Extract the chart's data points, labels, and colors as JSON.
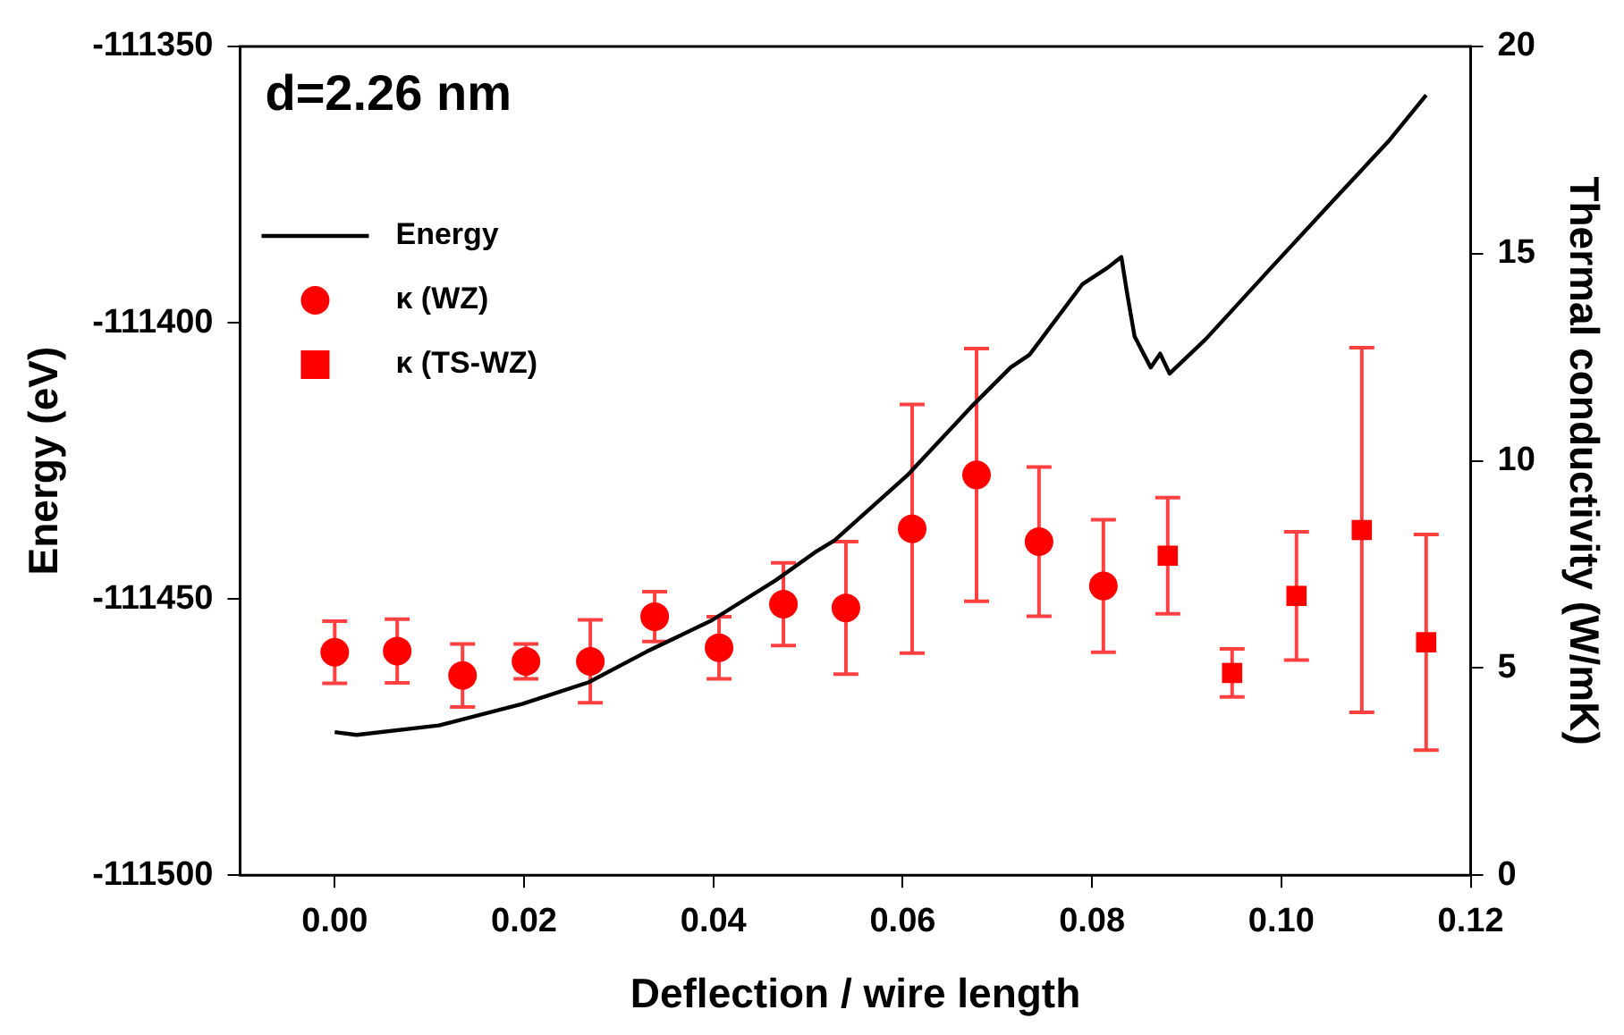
{
  "chart_data": {
    "type": "scatter",
    "xlabel": "Deflection / wire length",
    "ylabel": "Energy (eV)",
    "y2label": "Thermal conductivity (W/mK)",
    "annotations": [
      "d=2.26 nm"
    ],
    "xlim": [
      -0.01,
      0.12
    ],
    "xticks": [
      {
        "value": 0,
        "label": "0.00"
      },
      0.02,
      0.04,
      0.06,
      0.08,
      {
        "value": 0.1,
        "label": "0.10"
      },
      0.12
    ],
    "ylim": [
      -111500,
      -111350
    ],
    "yticks": [
      -111500,
      -111450,
      -111400,
      -111350
    ],
    "y2lim": [
      0,
      20
    ],
    "y2ticks": [
      0,
      5,
      10,
      15,
      20
    ],
    "grid": false,
    "legend": "top left",
    "series": [
      {
        "name": "Energy",
        "type": "line",
        "color": "#000000",
        "marker": "none",
        "line_style": "solid",
        "axis": "y",
        "x": [
          0,
          0.0023,
          0.011,
          0.0198,
          0.0268,
          0.033,
          0.0398,
          0.0466,
          0.0507,
          0.0528,
          0.0605,
          0.0672,
          0.0714,
          0.0734,
          0.079,
          0.0816,
          0.0831,
          0.0837,
          0.0845,
          0.0862,
          0.0872,
          0.0882,
          0.092,
          0.0989,
          0.1058,
          0.1113,
          0.1153
        ],
        "values": [
          -111474.1,
          -111474.6,
          -111472.9,
          -111469,
          -111465.1,
          -111459.5,
          -111453.9,
          -111446.6,
          -111441.6,
          -111439.4,
          -111427.6,
          -111415.3,
          -111408.1,
          -111405.8,
          -111393,
          -111390.1,
          -111388.1,
          -111394.6,
          -111402.5,
          -111408.1,
          -111405.6,
          -111409.2,
          -111403,
          -111390.1,
          -111377.3,
          -111367.2,
          -111358.8
        ]
      },
      {
        "name": "κ (WZ)",
        "color": "#ff0000",
        "marker": "circle",
        "axis": "y2",
        "x": [
          0,
          0.0066,
          0.0135,
          0.0202,
          0.027,
          0.0338,
          0.0406,
          0.0474,
          0.054,
          0.061,
          0.0678,
          0.0744,
          0.0812
        ],
        "values": [
          5.38,
          5.41,
          4.82,
          5.16,
          5.16,
          6.24,
          5.49,
          6.54,
          6.45,
          8.36,
          9.66,
          8.05,
          6.98
        ],
        "errors": [
          0.75,
          0.77,
          0.76,
          0.42,
          1.0,
          0.6,
          0.75,
          1.0,
          1.6,
          3.0,
          3.05,
          1.8,
          1.6
        ]
      },
      {
        "name": "κ (TS-WZ)",
        "color": "#ff0000",
        "marker": "square",
        "axis": "y2",
        "x": [
          0.088,
          0.0948,
          0.1016,
          0.1085,
          0.1153
        ],
        "values": [
          7.71,
          4.88,
          6.74,
          8.33,
          5.62
        ],
        "errors": [
          1.4,
          0.58,
          1.55,
          4.4,
          2.6
        ]
      }
    ]
  }
}
